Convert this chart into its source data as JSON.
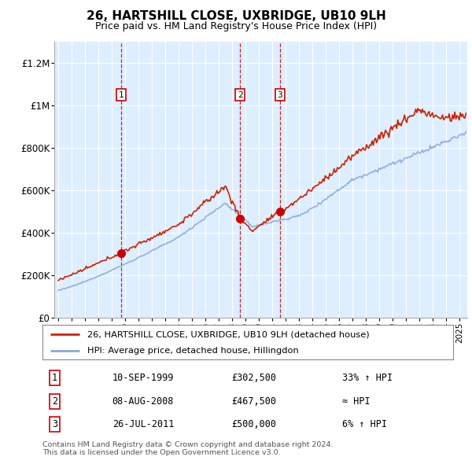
{
  "title": "26, HARTSHILL CLOSE, UXBRIDGE, UB10 9LH",
  "subtitle": "Price paid vs. HM Land Registry's House Price Index (HPI)",
  "ylim": [
    0,
    1300000
  ],
  "yticks": [
    0,
    200000,
    400000,
    600000,
    800000,
    1000000,
    1200000
  ],
  "ytick_labels": [
    "£0",
    "£200K",
    "£400K",
    "£600K",
    "£800K",
    "£1M",
    "£1.2M"
  ],
  "sale_dates": [
    1999.7,
    2008.6,
    2011.58
  ],
  "sale_prices": [
    302500,
    467500,
    500000
  ],
  "sale_labels": [
    "1",
    "2",
    "3"
  ],
  "legend_house_label": "26, HARTSHILL CLOSE, UXBRIDGE, UB10 9LH (detached house)",
  "legend_hpi_label": "HPI: Average price, detached house, Hillingdon",
  "table_rows": [
    [
      "1",
      "10-SEP-1999",
      "£302,500",
      "33% ↑ HPI"
    ],
    [
      "2",
      "08-AUG-2008",
      "£467,500",
      "≈ HPI"
    ],
    [
      "3",
      "26-JUL-2011",
      "£500,000",
      "6% ↑ HPI"
    ]
  ],
  "footer": "Contains HM Land Registry data © Crown copyright and database right 2024.\nThis data is licensed under the Open Government Licence v3.0.",
  "hpi_color": "#88aadd",
  "house_color": "#cc2200",
  "marker_box_color": "#cc0000",
  "plot_bg": "#ddeeff"
}
